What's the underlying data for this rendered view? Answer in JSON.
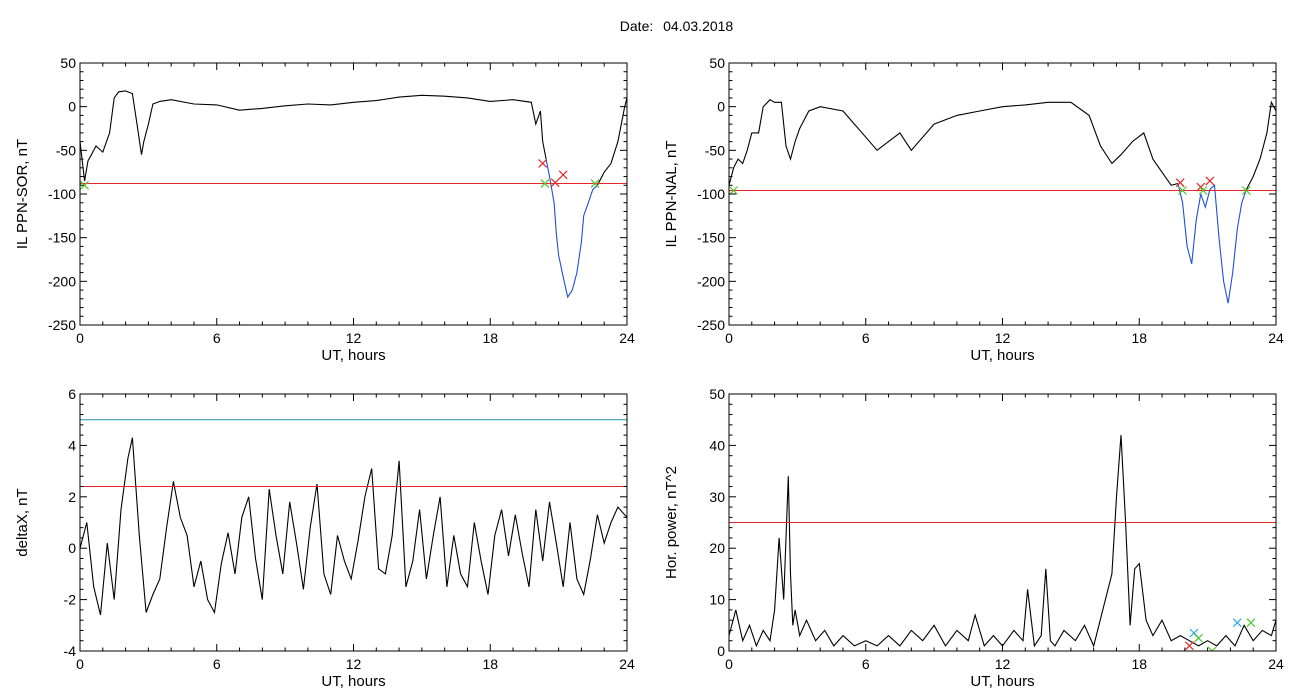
{
  "header": {
    "date_label": "Date:",
    "date_value": "04.03.2018"
  },
  "colors": {
    "trace": "#000000",
    "threshold": "#e8262a",
    "limit": "#1f8fb4",
    "segment": "#1f4fd8",
    "green_marker": "#4cc82a",
    "red_marker": "#e8262a",
    "blue_marker": "#2aa8e0"
  },
  "chart_data": [
    {
      "id": "sor",
      "type": "line",
      "title": "",
      "xlabel": "UT, hours",
      "ylabel": "IL PPN-SOR, nT",
      "xlim": [
        0,
        24
      ],
      "ylim": [
        -250,
        50
      ],
      "xticks": [
        0,
        6,
        12,
        18,
        24
      ],
      "yticks": [
        -250,
        -200,
        -150,
        -100,
        -50,
        0,
        50
      ],
      "series": [
        {
          "style": "trace",
          "x": [
            0,
            0.2,
            0.35,
            0.5,
            0.7,
            1.0,
            1.3,
            1.5,
            1.7,
            2.0,
            2.3,
            2.5,
            2.7,
            2.8,
            3.0,
            3.2,
            3.5,
            4,
            5,
            6,
            7,
            8,
            9,
            10,
            11,
            12,
            13,
            14,
            15,
            16,
            17,
            18,
            19,
            19.8,
            20.0,
            20.2,
            20.3,
            20.45
          ],
          "y": [
            -40,
            -85,
            -62,
            -55,
            -45,
            -52,
            -30,
            10,
            17,
            18,
            15,
            -20,
            -55,
            -40,
            -20,
            3,
            6,
            8,
            3,
            2,
            -4,
            -2,
            1,
            3,
            2,
            5,
            7,
            11,
            13,
            12,
            10,
            6,
            8,
            5,
            -20,
            -5,
            -40,
            -60
          ]
        },
        {
          "style": "segment",
          "x": [
            20.45,
            20.6,
            20.8,
            20.9,
            21.0,
            21.2,
            21.4,
            21.6,
            21.8,
            22.0,
            22.1,
            22.3,
            22.5,
            22.7
          ],
          "y": [
            -60,
            -80,
            -110,
            -145,
            -170,
            -195,
            -218,
            -210,
            -190,
            -155,
            -125,
            -110,
            -95,
            -90
          ]
        },
        {
          "style": "trace",
          "x": [
            22.7,
            23.0,
            23.3,
            23.6,
            23.9,
            24
          ],
          "y": [
            -90,
            -75,
            -65,
            -40,
            0,
            10
          ]
        },
        {
          "style": "threshold",
          "x": [
            0,
            24
          ],
          "y": [
            -88,
            -88
          ]
        }
      ],
      "markers": [
        {
          "type": "green",
          "x": 0.2,
          "y": -90
        },
        {
          "type": "red",
          "x": 20.3,
          "y": -65
        },
        {
          "type": "green",
          "x": 20.4,
          "y": -88
        },
        {
          "type": "red",
          "x": 20.85,
          "y": -87
        },
        {
          "type": "red",
          "x": 21.2,
          "y": -78
        },
        {
          "type": "green",
          "x": 22.6,
          "y": -88
        }
      ]
    },
    {
      "id": "nal",
      "type": "line",
      "title": "",
      "xlabel": "UT, hours",
      "ylabel": "IL PPN-NAL, nT",
      "xlim": [
        0,
        24
      ],
      "ylim": [
        -250,
        50
      ],
      "xticks": [
        0,
        6,
        12,
        18,
        24
      ],
      "yticks": [
        -250,
        -200,
        -150,
        -100,
        -50,
        0,
        50
      ],
      "series": [
        {
          "style": "trace",
          "x": [
            0,
            0.2,
            0.4,
            0.6,
            0.8,
            1.0,
            1.3,
            1.5,
            1.8,
            2.0,
            2.3,
            2.5,
            2.7,
            2.9,
            3.1,
            3.5,
            4,
            5,
            5.5,
            6,
            6.5,
            7,
            7.5,
            8,
            9,
            10,
            11,
            12,
            13,
            14,
            15,
            15.8,
            16.3,
            16.8,
            17.2,
            17.7,
            18.2,
            18.6,
            19.0,
            19.4,
            19.7
          ],
          "y": [
            -90,
            -70,
            -60,
            -65,
            -50,
            -30,
            -30,
            0,
            8,
            5,
            5,
            -45,
            -60,
            -40,
            -25,
            -5,
            0,
            -5,
            -20,
            -35,
            -50,
            -40,
            -30,
            -50,
            -20,
            -10,
            -5,
            0,
            2,
            5,
            5,
            -10,
            -45,
            -65,
            -55,
            -40,
            -30,
            -60,
            -75,
            -90,
            -88
          ]
        },
        {
          "style": "segment",
          "x": [
            19.7,
            19.9,
            20.1,
            20.3,
            20.5,
            20.7,
            20.9,
            21.1,
            21.3,
            21.5,
            21.7,
            21.9,
            22.1,
            22.3,
            22.5,
            22.7
          ],
          "y": [
            -88,
            -110,
            -160,
            -180,
            -130,
            -100,
            -115,
            -95,
            -90,
            -150,
            -200,
            -225,
            -190,
            -140,
            -110,
            -95
          ]
        },
        {
          "style": "trace",
          "x": [
            22.7,
            23.0,
            23.3,
            23.6,
            23.8,
            24
          ],
          "y": [
            -95,
            -80,
            -60,
            -30,
            5,
            -5
          ]
        },
        {
          "style": "threshold",
          "x": [
            0,
            24
          ],
          "y": [
            -96,
            -96
          ]
        }
      ],
      "markers": [
        {
          "type": "green",
          "x": 0.2,
          "y": -96
        },
        {
          "type": "red",
          "x": 19.8,
          "y": -87
        },
        {
          "type": "green",
          "x": 19.9,
          "y": -96
        },
        {
          "type": "red",
          "x": 20.7,
          "y": -92
        },
        {
          "type": "green",
          "x": 20.8,
          "y": -96
        },
        {
          "type": "red",
          "x": 21.1,
          "y": -85
        },
        {
          "type": "green",
          "x": 22.7,
          "y": -96
        }
      ]
    },
    {
      "id": "deltax",
      "type": "line",
      "title": "",
      "xlabel": "UT, hours",
      "ylabel": "deltaX, nT",
      "xlim": [
        0,
        24
      ],
      "ylim": [
        -4,
        6
      ],
      "xticks": [
        0,
        6,
        12,
        18,
        24
      ],
      "yticks": [
        -4,
        -2,
        0,
        2,
        4,
        6
      ],
      "series": [
        {
          "style": "trace",
          "x": [
            0,
            0.3,
            0.6,
            0.9,
            1.2,
            1.5,
            1.8,
            2.1,
            2.3,
            2.6,
            2.9,
            3.2,
            3.5,
            3.8,
            4.1,
            4.4,
            4.7,
            5.0,
            5.3,
            5.6,
            5.9,
            6.2,
            6.5,
            6.8,
            7.1,
            7.4,
            7.7,
            8.0,
            8.3,
            8.6,
            8.9,
            9.2,
            9.5,
            9.8,
            10.1,
            10.4,
            10.7,
            11.0,
            11.3,
            11.6,
            11.9,
            12.2,
            12.5,
            12.8,
            13.1,
            13.4,
            13.7,
            14.0,
            14.3,
            14.6,
            14.9,
            15.2,
            15.5,
            15.8,
            16.1,
            16.4,
            16.7,
            17.0,
            17.3,
            17.6,
            17.9,
            18.2,
            18.5,
            18.8,
            19.1,
            19.4,
            19.7,
            20.0,
            20.3,
            20.6,
            20.9,
            21.2,
            21.5,
            21.8,
            22.1,
            22.4,
            22.7,
            23.0,
            23.3,
            23.6,
            24
          ],
          "y": [
            0,
            1.0,
            -1.5,
            -2.6,
            0.2,
            -2.0,
            1.5,
            3.5,
            4.3,
            0.5,
            -2.5,
            -1.8,
            -1.2,
            0.8,
            2.6,
            1.2,
            0.5,
            -1.5,
            -0.5,
            -2.0,
            -2.5,
            -0.6,
            0.6,
            -1.0,
            1.2,
            2.0,
            -0.4,
            -2.0,
            2.3,
            0.5,
            -1.0,
            1.8,
            0.2,
            -1.6,
            0.8,
            2.5,
            -1.0,
            -1.8,
            0.5,
            -0.5,
            -1.2,
            0.3,
            2.0,
            3.1,
            -0.8,
            -1.0,
            0.5,
            3.4,
            -1.5,
            -0.5,
            1.5,
            -1.2,
            0.5,
            2.0,
            -1.5,
            0.5,
            -1.0,
            -1.5,
            1.0,
            -0.5,
            -1.8,
            0.5,
            1.5,
            -0.3,
            1.3,
            -0.2,
            -1.5,
            1.5,
            -0.5,
            1.8,
            0.2,
            -1.5,
            1.0,
            -1.2,
            -1.8,
            -0.4,
            1.3,
            0.2,
            1.0,
            1.6,
            1.2
          ]
        },
        {
          "style": "limit",
          "x": [
            0,
            24
          ],
          "y": [
            5,
            5
          ]
        },
        {
          "style": "threshold",
          "x": [
            0,
            24
          ],
          "y": [
            2.4,
            2.4
          ]
        }
      ],
      "markers": []
    },
    {
      "id": "power",
      "type": "line",
      "title": "",
      "xlabel": "UT, hours",
      "ylabel": "Hor. power, nT^2",
      "xlim": [
        0,
        24
      ],
      "ylim": [
        0,
        50
      ],
      "xticks": [
        0,
        6,
        12,
        18,
        24
      ],
      "yticks": [
        0,
        10,
        20,
        30,
        40,
        50
      ],
      "series": [
        {
          "style": "trace",
          "x": [
            0,
            0.3,
            0.6,
            0.9,
            1.2,
            1.5,
            1.8,
            2.0,
            2.2,
            2.4,
            2.6,
            2.7,
            2.8,
            2.9,
            3.1,
            3.4,
            3.8,
            4.2,
            4.6,
            5.0,
            5.5,
            6.0,
            6.5,
            7.0,
            7.5,
            8.0,
            8.5,
            9.0,
            9.5,
            10.0,
            10.5,
            10.8,
            11.2,
            11.6,
            12.0,
            12.5,
            12.9,
            13.1,
            13.4,
            13.7,
            13.9,
            14.1,
            14.3,
            14.7,
            15.2,
            15.6,
            16.0,
            16.4,
            16.8,
            17.0,
            17.2,
            17.4,
            17.6,
            17.8,
            18.0,
            18.3,
            18.6,
            19.0,
            19.4,
            19.8,
            20.2,
            20.6,
            21.0,
            21.4,
            21.8,
            22.2,
            22.6,
            23.0,
            23.4,
            23.8,
            24
          ],
          "y": [
            3,
            8,
            2,
            5,
            1,
            4,
            2,
            8,
            22,
            10,
            34,
            15,
            5,
            8,
            3,
            6,
            2,
            4,
            1,
            3,
            1,
            2,
            1,
            3,
            1,
            4,
            2,
            5,
            1,
            4,
            2,
            7,
            1,
            3,
            1,
            4,
            2,
            12,
            1,
            3,
            16,
            2,
            1,
            4,
            2,
            5,
            1,
            8,
            15,
            30,
            42,
            25,
            5,
            16,
            17,
            6,
            3,
            6,
            2,
            3,
            2,
            1,
            2,
            1,
            3,
            1,
            5,
            2,
            4,
            3,
            6
          ]
        },
        {
          "style": "threshold",
          "x": [
            0,
            24
          ],
          "y": [
            25,
            25
          ]
        }
      ],
      "markers": [
        {
          "type": "red",
          "x": 20.2,
          "y": 1
        },
        {
          "type": "blue",
          "x": 20.4,
          "y": 3.5
        },
        {
          "type": "green",
          "x": 20.6,
          "y": 2.5
        },
        {
          "type": "green",
          "x": 21.2,
          "y": 0
        },
        {
          "type": "blue",
          "x": 22.3,
          "y": 5.5
        },
        {
          "type": "green",
          "x": 22.9,
          "y": 5.5
        }
      ]
    }
  ]
}
